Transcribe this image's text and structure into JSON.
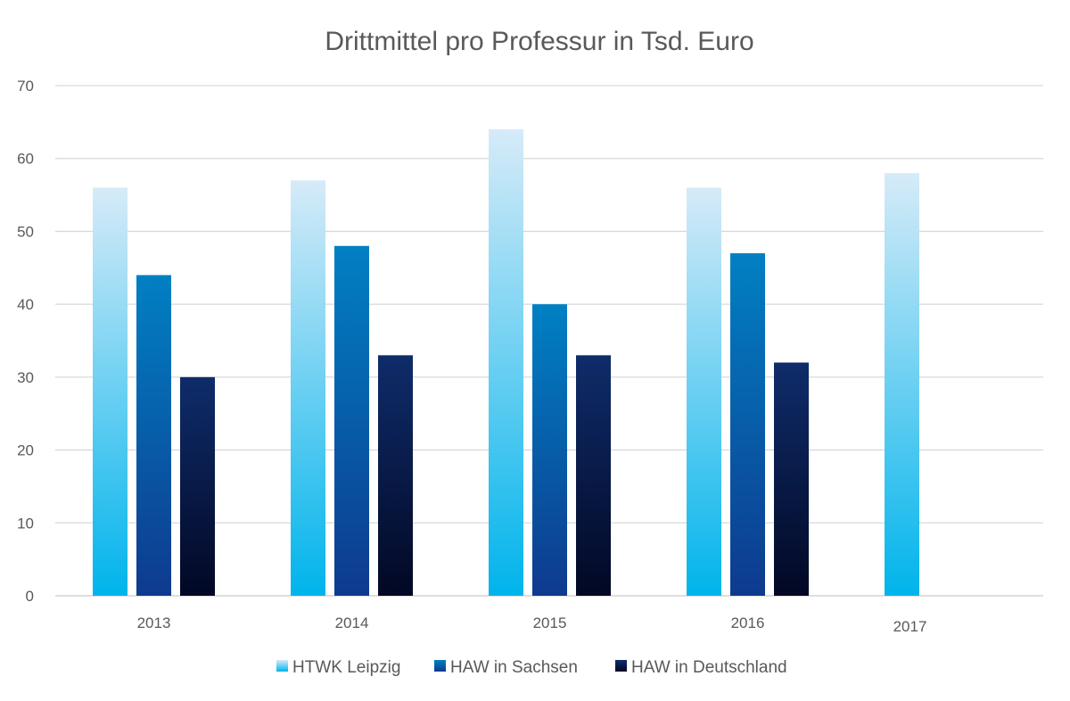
{
  "chart_data": {
    "type": "bar",
    "title": "Drittmittel pro Professur in Tsd. Euro",
    "xlabel": "",
    "ylabel": "",
    "categories": [
      "2013",
      "2014",
      "2015",
      "2016",
      "2017"
    ],
    "ylim": [
      0,
      70
    ],
    "yticks": [
      0,
      10,
      20,
      30,
      40,
      50,
      60,
      70
    ],
    "grid": true,
    "legend_position": "bottom",
    "series": [
      {
        "name": "HTWK Leipzig",
        "values": [
          56,
          57,
          64,
          56,
          58
        ],
        "color_top": "#d6ebf8",
        "color_bottom": "#00b4ec"
      },
      {
        "name": "HAW in Sachsen",
        "values": [
          44,
          48,
          40,
          47,
          null
        ],
        "color_top": "#0180c3",
        "color_bottom": "#0e3a8e"
      },
      {
        "name": "HAW in Deutschland",
        "values": [
          30,
          33,
          33,
          32,
          null
        ],
        "color_top": "#0f2c6a",
        "color_bottom": "#020824"
      }
    ]
  }
}
